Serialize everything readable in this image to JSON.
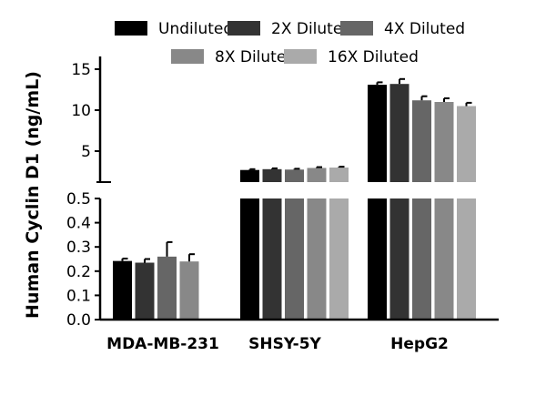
{
  "chart_data": {
    "type": "bar",
    "ylabel": "Human Cyclin D1 (ng/mL)",
    "categories": [
      "MDA-MB-231",
      "SHSY-5Y",
      "HepG2"
    ],
    "y_axis_break": {
      "lower_range": [
        0,
        0.5
      ],
      "upper_range": [
        0,
        15
      ],
      "lower_ticks": [
        "0.0",
        "0.1",
        "0.2",
        "0.3",
        "0.4",
        "0.5"
      ],
      "upper_ticks": [
        "5",
        "10",
        "15"
      ]
    },
    "legend_position": "top",
    "series": [
      {
        "name": "Undiluted",
        "color": "#000000",
        "values": [
          0.242,
          2.7,
          13.1
        ],
        "errors": [
          0.01,
          0.1,
          0.3
        ]
      },
      {
        "name": "2X Diluted",
        "color": "#333333",
        "values": [
          0.235,
          2.8,
          13.2
        ],
        "errors": [
          0.015,
          0.1,
          0.6
        ]
      },
      {
        "name": "4X Diluted",
        "color": "#666666",
        "values": [
          0.26,
          2.75,
          11.2
        ],
        "errors": [
          0.06,
          0.1,
          0.5
        ]
      },
      {
        "name": "8X Diluted",
        "color": "#888888",
        "values": [
          0.24,
          2.95,
          11.0
        ],
        "errors": [
          0.03,
          0.1,
          0.45
        ]
      },
      {
        "name": "16X Diluted",
        "color": "#aaaaaa",
        "values": [
          null,
          3.0,
          10.5
        ],
        "errors": [
          null,
          0.1,
          0.4
        ]
      }
    ]
  }
}
